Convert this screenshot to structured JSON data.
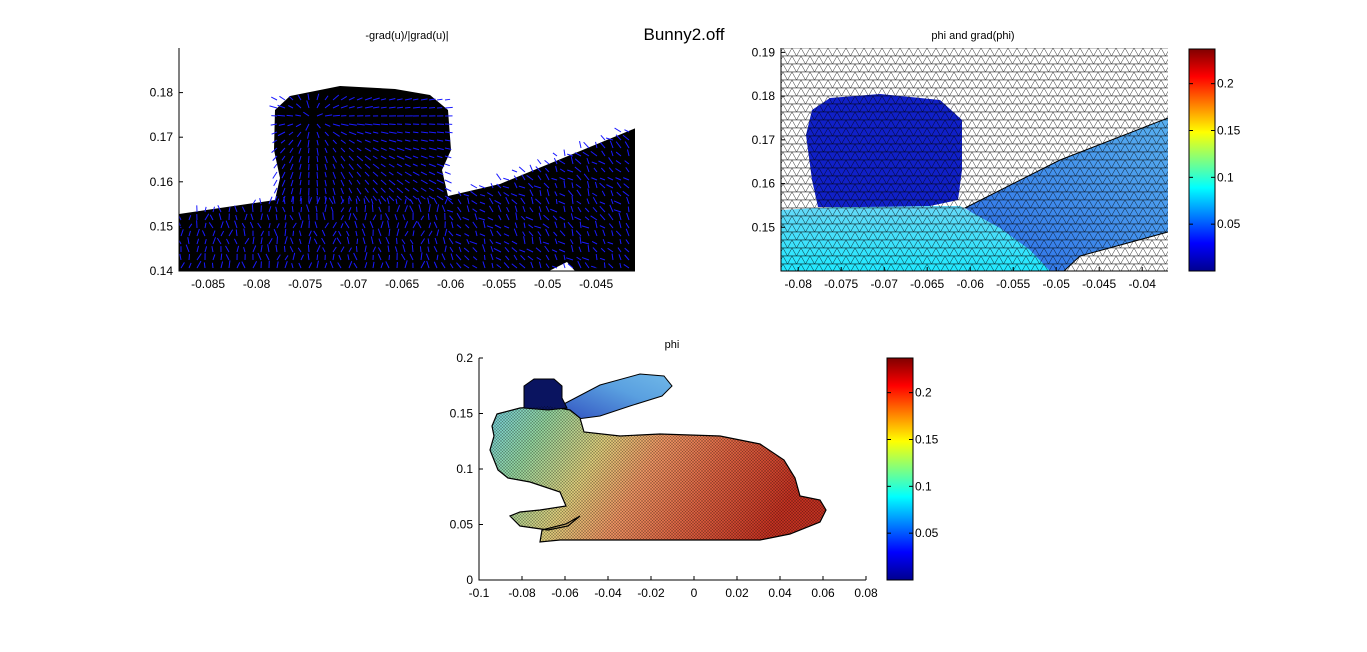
{
  "window": {
    "suptitle": "Bunny2.off"
  },
  "colors": {
    "background": "#ffffff",
    "quiver": "#1a1aff",
    "mesh_edge": "#000000",
    "bunny_dark": "#000000"
  },
  "colormap": "jet",
  "chart_data": [
    {
      "type": "quiver",
      "title": "-grad(u)/|grad(u)|",
      "xlim": [
        -0.088,
        -0.041
      ],
      "ylim": [
        0.14,
        0.19
      ],
      "xticks": [
        -0.085,
        -0.08,
        -0.075,
        -0.07,
        -0.065,
        -0.06,
        -0.055,
        -0.05,
        -0.045
      ],
      "xtick_labels": [
        "-0.085",
        "-0.08",
        "-0.075",
        "-0.07",
        "-0.065",
        "-0.06",
        "-0.055",
        "-0.05",
        "-0.045"
      ],
      "yticks": [
        0.14,
        0.15,
        0.16,
        0.17,
        0.18
      ],
      "ytick_labels": [
        "0.14",
        "0.15",
        "0.16",
        "0.17",
        "0.18"
      ],
      "box": "left-bottom"
    },
    {
      "type": "trisurf",
      "title": "phi and grad(phi)",
      "xlim": [
        -0.082,
        -0.037
      ],
      "ylim": [
        0.14,
        0.191
      ],
      "xticks": [
        -0.08,
        -0.075,
        -0.07,
        -0.065,
        -0.06,
        -0.055,
        -0.05,
        -0.045,
        -0.04
      ],
      "xtick_labels": [
        "-0.08",
        "-0.075",
        "-0.07",
        "-0.065",
        "-0.06",
        "-0.055",
        "-0.05",
        "-0.045",
        "-0.04"
      ],
      "yticks": [
        0.15,
        0.16,
        0.17,
        0.18,
        0.19
      ],
      "ytick_labels": [
        "0.15",
        "0.16",
        "0.17",
        "0.18",
        "0.19"
      ],
      "colorbar": {
        "clim": [
          0.0,
          0.237
        ],
        "ticks": [
          0.05,
          0.1,
          0.15,
          0.2
        ],
        "tick_labels": [
          "0.05",
          "0.1",
          "0.15",
          "0.2"
        ]
      }
    },
    {
      "type": "trisurf",
      "title": "phi",
      "xlim": [
        -0.1,
        0.08
      ],
      "ylim": [
        0,
        0.2
      ],
      "xticks": [
        -0.1,
        -0.08,
        -0.06,
        -0.04,
        -0.02,
        0,
        0.02,
        0.04,
        0.06,
        0.08
      ],
      "xtick_labels": [
        "-0.1",
        "-0.08",
        "-0.06",
        "-0.04",
        "-0.02",
        "0",
        "0.02",
        "0.04",
        "0.06",
        "0.08"
      ],
      "yticks": [
        0,
        0.05,
        0.1,
        0.15,
        0.2
      ],
      "ytick_labels": [
        "0",
        "0.05",
        "0.1",
        "0.15",
        "0.2"
      ],
      "colorbar": {
        "clim": [
          0.0,
          0.237
        ],
        "ticks": [
          0.05,
          0.1,
          0.15,
          0.2
        ],
        "tick_labels": [
          "0.05",
          "0.1",
          "0.15",
          "0.2"
        ]
      }
    }
  ]
}
